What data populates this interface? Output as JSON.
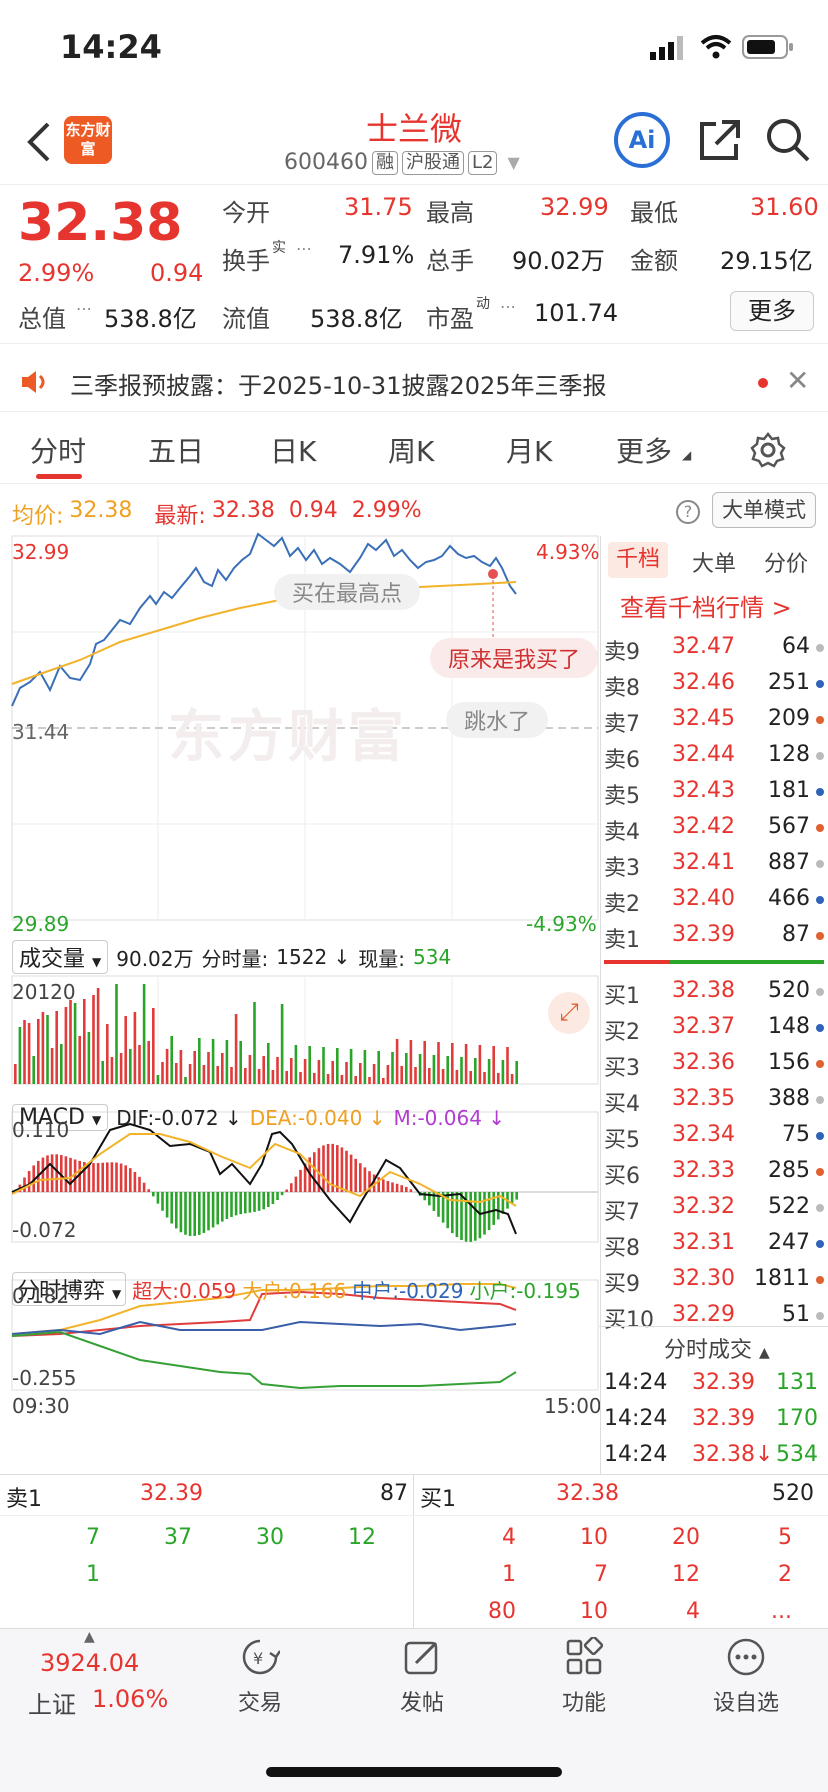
{
  "status": {
    "time": "14:24"
  },
  "nav": {
    "title": "士兰微",
    "code": "600460",
    "tags": [
      "融",
      "沪股通",
      "L2"
    ],
    "logo_text": "东方财富",
    "ai_label": "Ai"
  },
  "quote": {
    "price": "32.38",
    "pct": "2.99%",
    "chg": "0.94",
    "more_label": "更多",
    "fields": {
      "open_label": "今开",
      "open": "31.75",
      "high_label": "最高",
      "high": "32.99",
      "low_label": "最低",
      "low": "31.60",
      "turnover_label": "换手",
      "turnover_sup": "实",
      "turnover": "7.91%",
      "vol_label": "总手",
      "vol": "90.02万",
      "amt_label": "金额",
      "amt": "29.15亿",
      "mcap_label": "总值",
      "mcap": "538.8亿",
      "float_label": "流值",
      "float": "538.8亿",
      "pe_label": "市盈",
      "pe_sup": "动",
      "pe": "101.74"
    }
  },
  "notice": {
    "text": "三季报预披露：于2025-10-31披露2025年三季报"
  },
  "tabs": [
    "分时",
    "五日",
    "日K",
    "周K",
    "月K",
    "更多"
  ],
  "chart": {
    "avg_label": "均价:",
    "avg": "32.38",
    "last_label": "最新:",
    "last": "32.38",
    "chg": "0.94",
    "pct": "2.99%",
    "mode_label": "大单模式",
    "y_top": "32.99",
    "y_mid": "31.44",
    "y_bot": "29.89",
    "pct_top": "4.93%",
    "pct_bot": "-4.93%",
    "bubble1": "买在最高点",
    "bubble2": "原来是我买了",
    "bubble3": "跳水了",
    "watermark": "东方财富",
    "vol_label": "成交量",
    "vol_total": "90.02万",
    "vol_min_label": "分时量:",
    "vol_min": "1522 ↓",
    "vol_now_label": "现量:",
    "vol_now": "534",
    "vol_max": "20120",
    "macd_label": "MACD",
    "dif": "DIF:-0.072 ↓",
    "dea": "DEA:-0.040 ↓",
    "m": "M:-0.064 ↓",
    "macd_top": "0.110",
    "macd_bot": "-0.072",
    "game_label": "分时博弈",
    "super": "超大:0.059",
    "big": "大户:0.166",
    "mid": "中户:-0.029",
    "small": "小户:-0.195",
    "game_top": "0.182",
    "game_bot": "-0.255",
    "t_start": "09:30",
    "t_end": "15:00"
  },
  "depth": {
    "tabs": [
      "千档",
      "大单",
      "分价"
    ],
    "link": "查看千档行情 >",
    "asks": [
      [
        "卖9",
        "32.47",
        "64"
      ],
      [
        "卖8",
        "32.46",
        "251"
      ],
      [
        "卖7",
        "32.45",
        "209"
      ],
      [
        "卖6",
        "32.44",
        "128"
      ],
      [
        "卖5",
        "32.43",
        "181"
      ],
      [
        "卖4",
        "32.42",
        "567"
      ],
      [
        "卖3",
        "32.41",
        "887"
      ],
      [
        "卖2",
        "32.40",
        "466"
      ],
      [
        "卖1",
        "32.39",
        "87"
      ]
    ],
    "bids": [
      [
        "买1",
        "32.38",
        "520"
      ],
      [
        "买2",
        "32.37",
        "148"
      ],
      [
        "买3",
        "32.36",
        "156"
      ],
      [
        "买4",
        "32.35",
        "388"
      ],
      [
        "买5",
        "32.34",
        "75"
      ],
      [
        "买6",
        "32.33",
        "285"
      ],
      [
        "买7",
        "32.32",
        "522"
      ],
      [
        "买8",
        "32.31",
        "247"
      ],
      [
        "买9",
        "32.30",
        "1811"
      ],
      [
        "买10",
        "32.29",
        "51"
      ]
    ],
    "ticks_label": "分时成交",
    "ticks": [
      [
        "14:24",
        "32.39",
        "131"
      ],
      [
        "14:24",
        "32.39",
        "170"
      ],
      [
        "14:24",
        "32.38↓",
        "534"
      ]
    ]
  },
  "bottom5": {
    "ask_label": "卖1",
    "ask_price": "32.39",
    "ask_vol": "87",
    "bid_label": "买1",
    "bid_price": "32.38",
    "bid_vol": "520",
    "ask_rows": [
      [
        "7",
        "37",
        "30",
        "12"
      ],
      [
        "1",
        "",
        "",
        ""
      ]
    ],
    "bid_rows": [
      [
        "4",
        "10",
        "20",
        "5"
      ],
      [
        "1",
        "7",
        "12",
        "2"
      ],
      [
        "80",
        "10",
        "4",
        "..."
      ]
    ]
  },
  "bottombar": {
    "index_value": "3924.04",
    "index_name": "上证",
    "index_pct": "1.06%",
    "items": [
      "交易",
      "发帖",
      "功能",
      "设自选"
    ]
  }
}
